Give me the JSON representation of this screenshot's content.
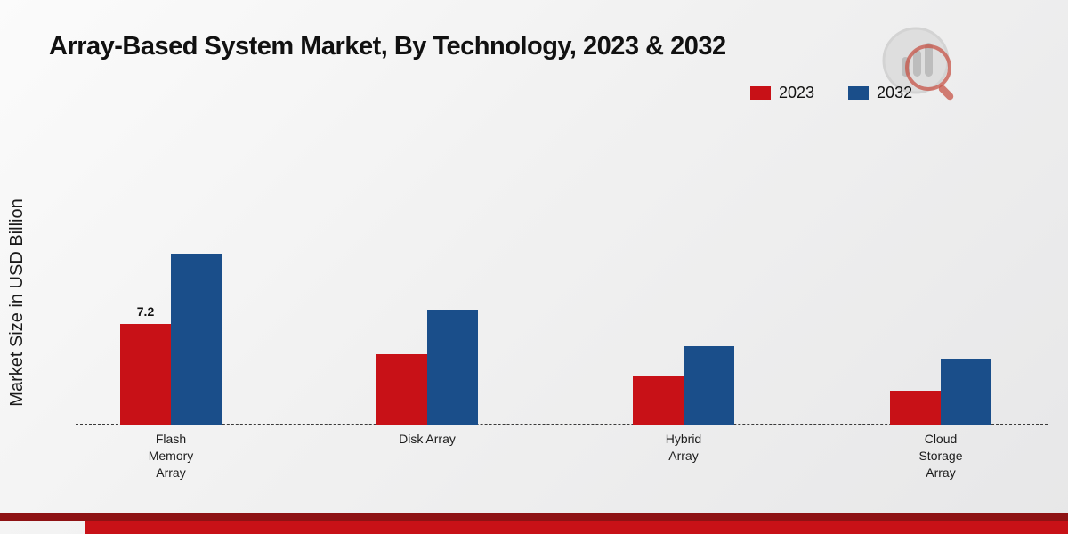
{
  "title": "Array-Based System Market, By Technology, 2023 & 2032",
  "ylabel": "Market Size in USD Billion",
  "legend": [
    {
      "label": "2023",
      "color": "#c81117"
    },
    {
      "label": "2032",
      "color": "#1a4e8a"
    }
  ],
  "chart_data": {
    "type": "bar",
    "categories": [
      "Flash Memory Array",
      "Disk Array",
      "Hybrid Array",
      "Cloud Storage Array"
    ],
    "category_label_lines": [
      "Flash\nMemory\nArray",
      "Disk Array",
      "Hybrid\nArray",
      "Cloud\nStorage\nArray"
    ],
    "series": [
      {
        "name": "2023",
        "color": "#c81117",
        "values": [
          7.2,
          5.0,
          3.5,
          2.4
        ]
      },
      {
        "name": "2032",
        "color": "#1a4e8a",
        "values": [
          12.2,
          8.2,
          5.6,
          4.7
        ]
      }
    ],
    "annotations": [
      {
        "series_index": 0,
        "category_index": 0,
        "text": "7.2"
      }
    ],
    "title": "Array-Based System Market, By Technology, 2023 & 2032",
    "xlabel": "",
    "ylabel": "Market Size in USD Billion",
    "ylim": [
      0,
      13
    ],
    "grid": false,
    "legend_position": "top-right",
    "baseline_style": "dashed"
  }
}
